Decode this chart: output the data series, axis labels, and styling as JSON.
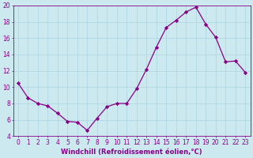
{
  "x": [
    0,
    1,
    2,
    3,
    4,
    5,
    6,
    7,
    8,
    9,
    10,
    11,
    12,
    13,
    14,
    15,
    16,
    17,
    18,
    19,
    20,
    21,
    22,
    23
  ],
  "y": [
    10.5,
    8.7,
    8.0,
    7.7,
    6.8,
    5.8,
    5.7,
    4.7,
    6.2,
    7.6,
    8.0,
    8.0,
    9.8,
    12.2,
    14.9,
    17.3,
    18.2,
    19.2,
    19.8,
    17.7,
    16.1,
    13.1,
    13.2,
    11.8
  ],
  "line_color": "#880088",
  "marker": "D",
  "marker_size": 2.2,
  "bg_color": "#cce9f0",
  "grid_color": "#b0d8e4",
  "xlabel": "Windchill (Refroidissement éolien,°C)",
  "ylim": [
    4,
    20
  ],
  "yticks": [
    4,
    6,
    8,
    10,
    12,
    14,
    16,
    18,
    20
  ],
  "xticks": [
    0,
    1,
    2,
    3,
    4,
    5,
    6,
    7,
    8,
    9,
    10,
    11,
    12,
    13,
    14,
    15,
    16,
    17,
    18,
    19,
    20,
    21,
    22,
    23
  ],
  "xlabel_fontsize": 6.0,
  "tick_fontsize": 5.5
}
